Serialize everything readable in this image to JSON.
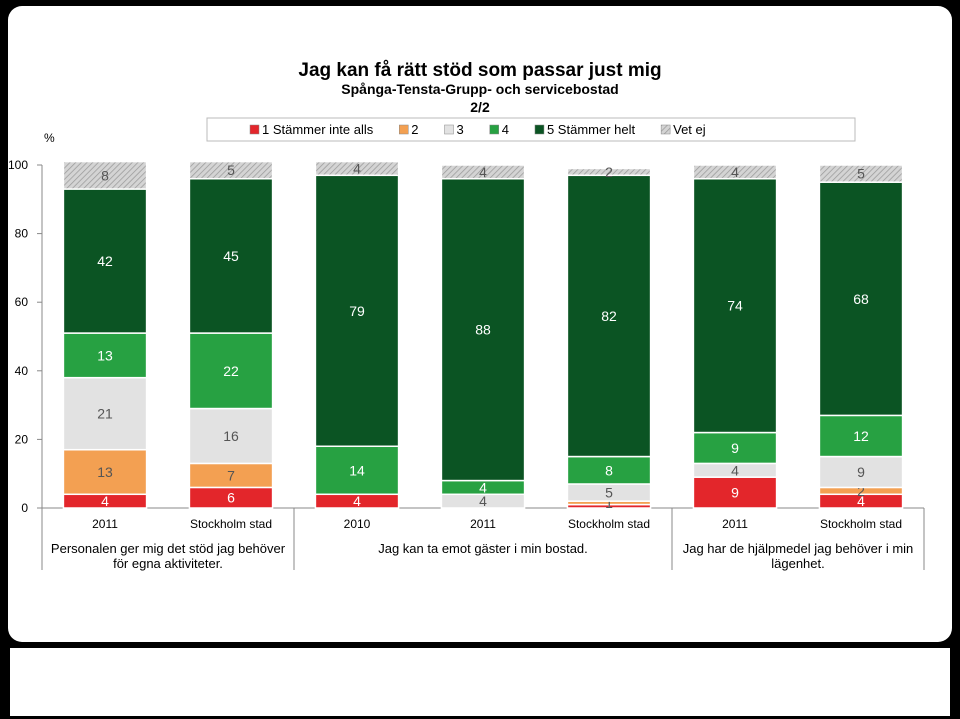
{
  "chart_data": {
    "type": "stacked-bar",
    "title": "Jag kan få rätt stöd som passar just mig",
    "subtitle": "Spånga-Tensta-Grupp- och servicebostad",
    "page": "2/2",
    "y_label": "%",
    "groups": [
      {
        "label": "Personalen ger mig det stöd jag behöver för egna aktiviteter.",
        "categories": [
          "2011",
          "Stockholm stad"
        ]
      },
      {
        "label": "Jag kan ta emot gäster i min bostad.",
        "categories": [
          "2010",
          "2011",
          "Stockholm stad"
        ]
      },
      {
        "label": "Jag har de hjälpmedel jag behöver i min lägenhet.",
        "categories": [
          "2011",
          "Stockholm stad"
        ]
      }
    ],
    "series": [
      {
        "name": "1 Stämmer inte alls",
        "color": "#e3262b",
        "values": [
          4,
          6,
          4,
          null,
          1,
          9,
          4
        ]
      },
      {
        "name": "2",
        "color": "#f3a052",
        "values": [
          13,
          7,
          null,
          null,
          1,
          null,
          2
        ]
      },
      {
        "name": "3",
        "color": "#e2e2e2",
        "values": [
          21,
          16,
          null,
          4,
          5,
          4,
          9
        ]
      },
      {
        "name": "4",
        "color": "#27a142",
        "values": [
          13,
          22,
          14,
          4,
          8,
          9,
          12
        ]
      },
      {
        "name": "5 Stämmer helt",
        "color": "#0b5423",
        "values": [
          42,
          45,
          79,
          88,
          82,
          74,
          68
        ]
      },
      {
        "name": "Vet ej",
        "color": "#b8b8b8",
        "values": [
          8,
          5,
          4,
          4,
          2,
          4,
          5
        ]
      }
    ],
    "ylim": [
      0,
      100
    ],
    "yticks": [
      0,
      20,
      40,
      60,
      80,
      100
    ]
  }
}
